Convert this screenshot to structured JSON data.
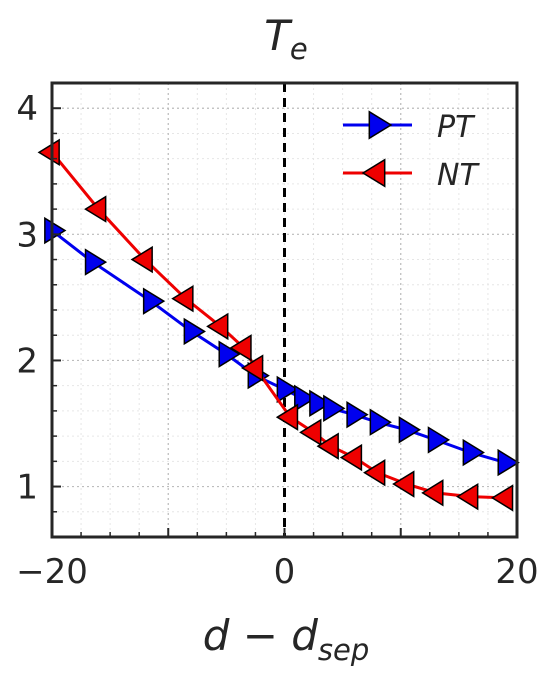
{
  "chart_data": {
    "type": "line",
    "title": "T",
    "title_subscript": "e",
    "xlabel": "d − d",
    "xlabel_subscript": "sep",
    "ylabel": "",
    "xlim": [
      -20,
      20
    ],
    "ylim": [
      0.6,
      4.2
    ],
    "x_ticks": [
      -20,
      0,
      20
    ],
    "x_tick_labels": [
      "−20",
      "0",
      "20"
    ],
    "y_ticks": [
      1,
      2,
      3,
      4
    ],
    "y_tick_labels": [
      "1",
      "2",
      "3",
      "4"
    ],
    "grid": true,
    "legend_position": "top-right",
    "vline": {
      "x": 0,
      "style": "dashed",
      "color": "#000000"
    },
    "series": [
      {
        "name": "PT",
        "color": "#0000ee",
        "marker": "triangle-right",
        "x": [
          -20,
          -16.5,
          -11.5,
          -8,
          -5,
          -2.5,
          0,
          1.5,
          2.8,
          4,
          6,
          8,
          10.5,
          13,
          16,
          19
        ],
        "y": [
          3.03,
          2.78,
          2.47,
          2.23,
          2.05,
          1.88,
          1.77,
          1.7,
          1.66,
          1.62,
          1.57,
          1.51,
          1.45,
          1.37,
          1.27,
          1.19
        ]
      },
      {
        "name": "NT",
        "color": "#ee0000",
        "marker": "triangle-left",
        "x": [
          -20,
          -16,
          -12,
          -8.5,
          -5.5,
          -3.5,
          -2.5,
          0.5,
          2.5,
          4,
          6,
          8,
          10.5,
          13,
          16,
          19
        ],
        "y": [
          3.65,
          3.2,
          2.8,
          2.49,
          2.27,
          2.1,
          1.94,
          1.55,
          1.43,
          1.32,
          1.23,
          1.11,
          1.02,
          0.95,
          0.92,
          0.91
        ]
      }
    ]
  }
}
